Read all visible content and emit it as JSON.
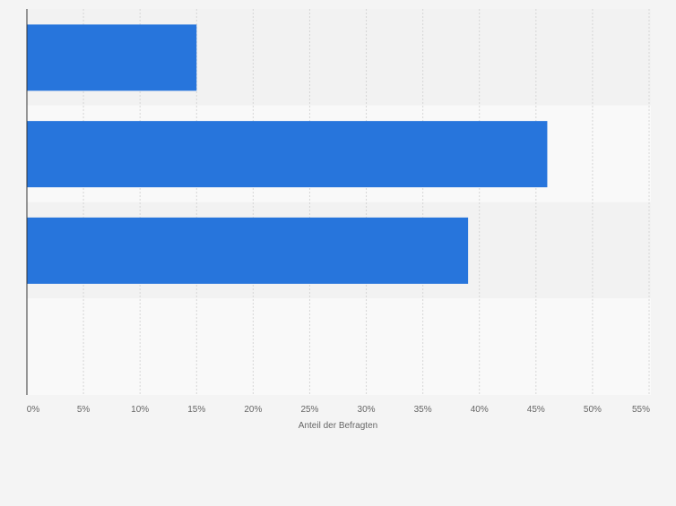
{
  "chart_data": {
    "type": "bar",
    "orientation": "horizontal",
    "categories": [
      "",
      "",
      "",
      ""
    ],
    "values": [
      15,
      46,
      39,
      0
    ],
    "xlabel": "Anteil der Befragten",
    "ylabel": "",
    "xlim": [
      0,
      55
    ],
    "x_ticks": [
      0,
      5,
      10,
      15,
      20,
      25,
      30,
      35,
      40,
      45,
      50,
      55
    ],
    "x_tick_labels": [
      "0%",
      "5%",
      "10%",
      "15%",
      "20%",
      "25%",
      "30%",
      "35%",
      "40%",
      "45%",
      "50%",
      "55%"
    ],
    "grid": true,
    "legend": "none",
    "colors": {
      "bar": "#2775dc",
      "band_odd": "#f2f2f2",
      "band_even": "#f9f9f9",
      "grid": "#d6d6d6",
      "axis": "#333333",
      "text": "#666666",
      "background": "#f4f4f4"
    }
  }
}
